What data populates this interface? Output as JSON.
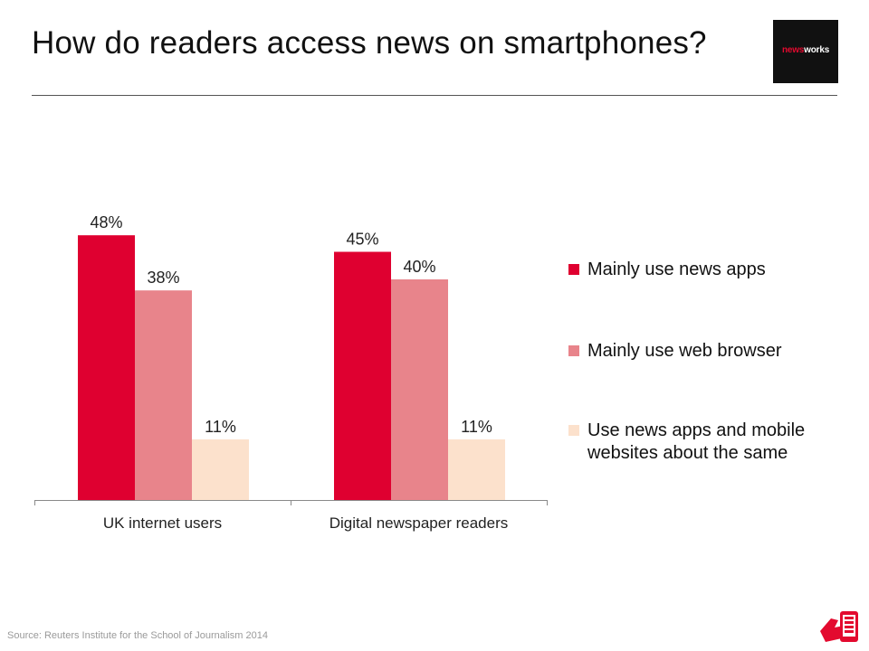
{
  "header": {
    "title": "How do readers access news on smartphones?",
    "logo_text_accent": "news",
    "logo_text_rest": "works"
  },
  "chart_data": {
    "type": "bar",
    "categories": [
      "UK internet users",
      "Digital newspaper readers"
    ],
    "series": [
      {
        "name": "Mainly use news apps",
        "values": [
          48,
          45
        ],
        "labels": [
          "48%",
          "45%"
        ],
        "color": "#df0030"
      },
      {
        "name": "Mainly use web browser",
        "values": [
          38,
          40
        ],
        "labels": [
          "38%",
          "40%"
        ],
        "color": "#e8848b"
      },
      {
        "name": "Use news apps and mobile websites about the same",
        "values": [
          11,
          11
        ],
        "labels": [
          "11%",
          "11%"
        ],
        "color": "#fce1cc"
      }
    ],
    "ylim": [
      0,
      55
    ],
    "grid": false,
    "legend_position": "right"
  },
  "legend": {
    "items": [
      {
        "label": "Mainly use news apps",
        "color": "#df0030"
      },
      {
        "label": "Mainly use web browser",
        "color": "#e8848b"
      },
      {
        "label": "Use news apps and mobile websites about the same",
        "color": "#fce1cc"
      }
    ]
  },
  "footer": {
    "source": "Source: Reuters Institute for the School of Journalism 2014",
    "icon": "hand-phone-icon"
  },
  "colors": {
    "brand_red": "#e30a2f",
    "logo_black": "#111111"
  }
}
